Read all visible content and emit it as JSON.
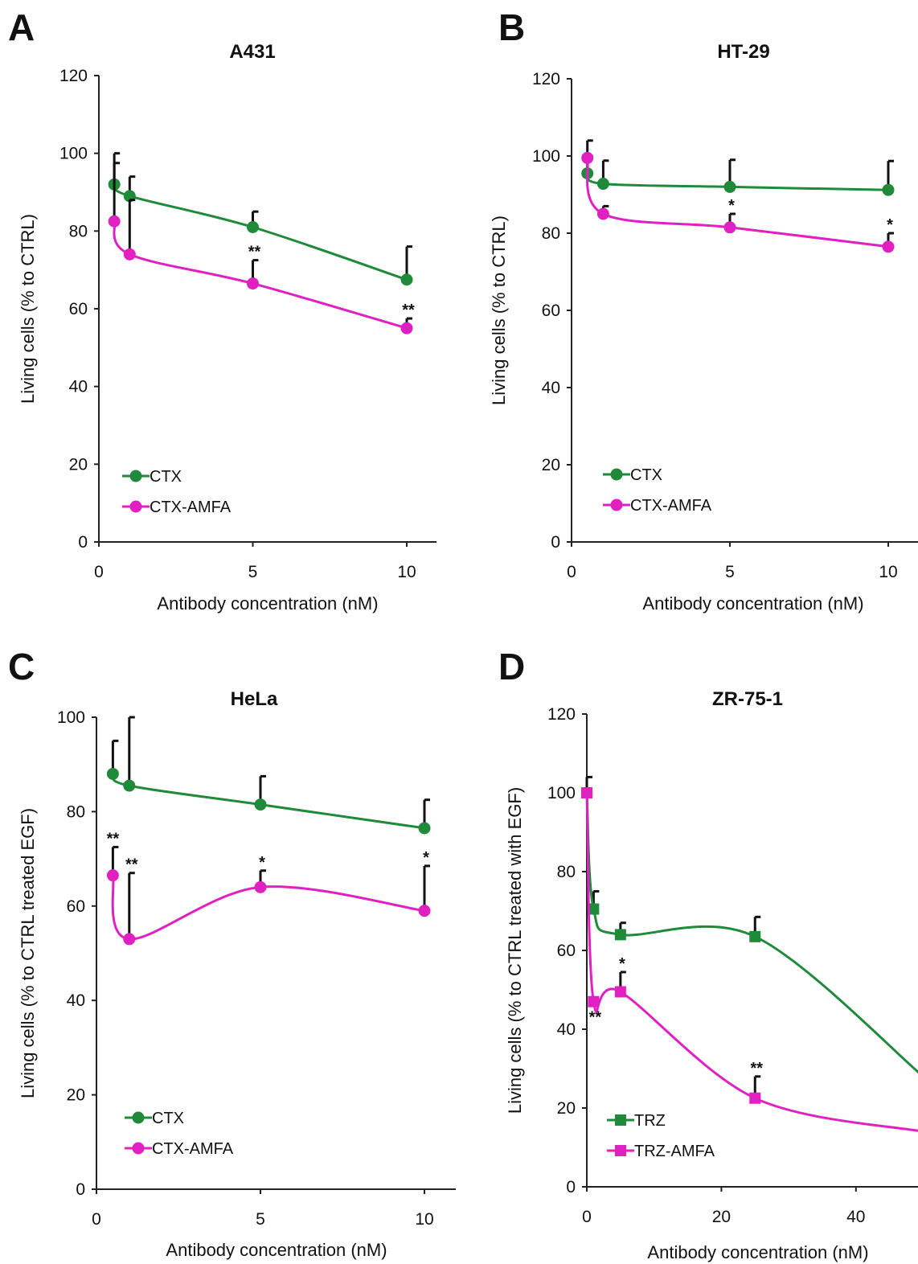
{
  "chart_data": [
    {
      "panel": "A",
      "type": "line",
      "title": "A431",
      "xlabel": "Antibody concentration (nM)",
      "ylabel": "Living cells (% to CTRL)",
      "xlim": [
        0,
        11
      ],
      "ylim": [
        0,
        120
      ],
      "xticks": [
        0,
        5,
        10
      ],
      "yticks": [
        0,
        20,
        40,
        60,
        80,
        100,
        120
      ],
      "legend_position": "bottom-left",
      "marker": "circle",
      "series": [
        {
          "name": "CTX",
          "color": "#1f8a3a",
          "x": [
            0.5,
            1,
            5,
            10
          ],
          "y": [
            92,
            89,
            81,
            67.5
          ],
          "err": [
            8,
            5,
            4,
            8.5
          ],
          "stars": [
            "",
            "",
            "",
            ""
          ]
        },
        {
          "name": "CTX-AMFA",
          "color": "#e020c0",
          "x": [
            0.5,
            1,
            5,
            10
          ],
          "y": [
            82.5,
            74,
            66.5,
            55
          ],
          "err": [
            15,
            14,
            6,
            2.5
          ],
          "stars": [
            "",
            "",
            "**",
            "**"
          ]
        }
      ]
    },
    {
      "panel": "B",
      "type": "line",
      "title": "HT-29",
      "xlabel": "Antibody concentration (nM)",
      "ylabel": "Living cells (% to CTRL)",
      "xlim": [
        0,
        11
      ],
      "ylim": [
        0,
        120
      ],
      "xticks": [
        0,
        5,
        10
      ],
      "yticks": [
        0,
        20,
        40,
        60,
        80,
        100,
        120
      ],
      "legend_position": "bottom-left",
      "marker": "circle",
      "series": [
        {
          "name": "CTX",
          "color": "#1f8a3a",
          "x": [
            0.5,
            1,
            5,
            10
          ],
          "y": [
            95.5,
            92.8,
            92,
            91.2
          ],
          "err": [
            4.5,
            6,
            7,
            7.5
          ],
          "stars": [
            "",
            "",
            "",
            ""
          ]
        },
        {
          "name": "CTX-AMFA",
          "color": "#e020c0",
          "x": [
            0.5,
            1,
            5,
            10
          ],
          "y": [
            99.5,
            85,
            81.5,
            76.5
          ],
          "err": [
            4.5,
            2,
            3.5,
            3.5
          ],
          "stars": [
            "",
            "",
            "*",
            "*"
          ]
        }
      ]
    },
    {
      "panel": "C",
      "type": "line",
      "title": "HeLa",
      "xlabel": "Antibody concentration (nM)",
      "ylabel": "Living cells (% to CTRL treated EGF)",
      "xlim": [
        0,
        11
      ],
      "ylim": [
        0,
        100
      ],
      "xticks": [
        0,
        5,
        10
      ],
      "yticks": [
        0,
        20,
        40,
        60,
        80,
        100
      ],
      "legend_position": "bottom-left",
      "marker": "circle",
      "series": [
        {
          "name": "CTX",
          "color": "#1f8a3a",
          "x": [
            0.5,
            1,
            5,
            10
          ],
          "y": [
            88,
            85.5,
            81.5,
            76.5
          ],
          "err": [
            7,
            14.5,
            6,
            6
          ],
          "stars": [
            "",
            "",
            "",
            ""
          ]
        },
        {
          "name": "CTX-AMFA",
          "color": "#e020c0",
          "x": [
            0.5,
            1,
            5,
            10
          ],
          "y": [
            66.5,
            53,
            64,
            59
          ],
          "err": [
            6,
            14,
            3.5,
            9.5
          ],
          "stars": [
            "**",
            "**",
            "*",
            "*"
          ]
        }
      ]
    },
    {
      "panel": "D",
      "type": "line",
      "title": "ZR-75-1",
      "xlabel": "Antibody concentration (nM)",
      "ylabel": "Living cells (% to CTRL treated with EGF)",
      "xlim": [
        0,
        55
      ],
      "ylim": [
        0,
        120
      ],
      "xticks": [
        0,
        20,
        40
      ],
      "yticks": [
        0,
        20,
        40,
        60,
        80,
        100,
        120
      ],
      "legend_position": "bottom-left",
      "marker": "square",
      "series": [
        {
          "name": "TRZ",
          "color": "#1f8a3a",
          "x": [
            0,
            1,
            5,
            25,
            50
          ],
          "y": [
            100,
            70.5,
            64,
            63.5,
            28
          ],
          "err": [
            4,
            4.5,
            3,
            5,
            0
          ],
          "stars": [
            "",
            "",
            "",
            "",
            ""
          ]
        },
        {
          "name": "TRZ-AMFA",
          "color": "#e020c0",
          "x": [
            0,
            1,
            5,
            25,
            50
          ],
          "y": [
            100,
            47,
            49.5,
            22.5,
            14
          ],
          "err": [
            0,
            0,
            5,
            5.5,
            0
          ],
          "stars": [
            "",
            "**",
            "*",
            "**",
            ""
          ]
        }
      ]
    }
  ]
}
